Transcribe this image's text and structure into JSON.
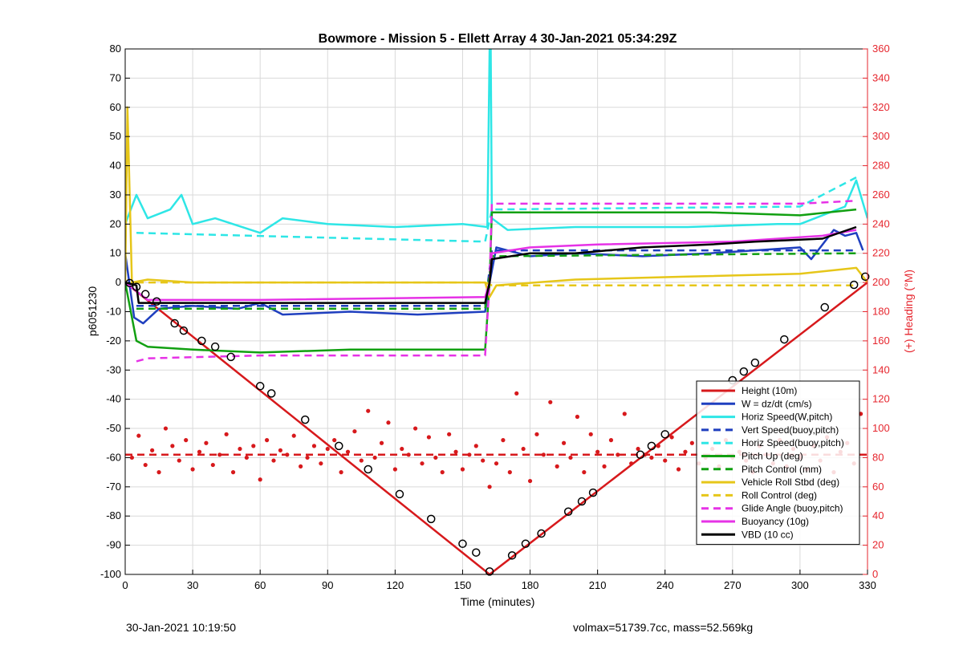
{
  "chart_data": {
    "type": "line",
    "title": "Bowmore - Mission 5 - Ellett Array 4 30-Jan-2021 05:34:29Z",
    "xlabel": "Time (minutes)",
    "ylabel": "p6051230",
    "y2label": "(+) Heading (°M)",
    "xlim": [
      0,
      330
    ],
    "ylim": [
      -100,
      80
    ],
    "y2lim": [
      0,
      360
    ],
    "xticks": [
      0,
      30,
      60,
      90,
      120,
      150,
      180,
      210,
      240,
      270,
      300,
      330
    ],
    "yticks": [
      -100,
      -90,
      -80,
      -70,
      -60,
      -50,
      -40,
      -30,
      -20,
      -10,
      0,
      10,
      20,
      30,
      40,
      50,
      60,
      70,
      80
    ],
    "y2ticks": [
      0,
      20,
      40,
      60,
      80,
      100,
      120,
      140,
      160,
      180,
      200,
      220,
      240,
      260,
      280,
      300,
      320,
      340,
      360
    ],
    "grid": true,
    "legend_position": "bottom-right",
    "colors": {
      "red": "#d7191c",
      "blue": "#1f3fbf",
      "cyan": "#2ee6e6",
      "green": "#12a012",
      "gold": "#e6c619",
      "magenta": "#e632e6",
      "black": "#000000",
      "right_axis": "#e6262e"
    },
    "series": [
      {
        "name": "Height (10m)",
        "color": "#d7191c",
        "style": "solid",
        "axis": "left",
        "x": [
          0,
          162,
          330
        ],
        "y": [
          0,
          -100,
          0
        ]
      },
      {
        "name": "W = dz/dt (cm/s)",
        "color": "#1f3fbf",
        "style": "solid",
        "axis": "left",
        "x": [
          0,
          4,
          8,
          15,
          30,
          50,
          60,
          70,
          100,
          130,
          160,
          162,
          165,
          180,
          200,
          230,
          260,
          280,
          300,
          305,
          315,
          320,
          325,
          328
        ],
        "y": [
          10,
          -12,
          -14,
          -9,
          -8,
          -9,
          -7,
          -11,
          -10,
          -11,
          -10,
          0,
          12,
          9,
          10,
          9,
          10,
          11,
          12,
          8,
          18,
          16,
          17,
          11
        ]
      },
      {
        "name": "Horiz Speed(W,pitch)",
        "color": "#2ee6e6",
        "style": "solid",
        "axis": "left",
        "x": [
          0,
          5,
          10,
          20,
          25,
          30,
          40,
          60,
          70,
          90,
          120,
          150,
          161,
          162,
          162.5,
          163,
          170,
          200,
          250,
          290,
          300,
          320,
          325,
          330
        ],
        "y": [
          20,
          30,
          22,
          25,
          30,
          20,
          22,
          17,
          22,
          20,
          19,
          20,
          19,
          80,
          80,
          22,
          18,
          19,
          19,
          20,
          20,
          26,
          35,
          22
        ]
      },
      {
        "name": "Vert Speed(buoy,pitch)",
        "color": "#1f3fbf",
        "style": "dashed",
        "axis": "left",
        "x": [
          5,
          160,
          163,
          325
        ],
        "y": [
          -8,
          -8,
          11,
          11
        ]
      },
      {
        "name": "Horiz Speed(buoy,pitch)",
        "color": "#2ee6e6",
        "style": "dashed",
        "axis": "left",
        "x": [
          5,
          160,
          163,
          300,
          315,
          325
        ],
        "y": [
          17,
          14,
          25,
          26,
          32,
          36
        ]
      },
      {
        "name": "Pitch Up (deg)",
        "color": "#12a012",
        "style": "solid",
        "axis": "left",
        "x": [
          0,
          5,
          10,
          30,
          60,
          100,
          160,
          162,
          163,
          200,
          260,
          300,
          325
        ],
        "y": [
          0,
          -20,
          -22,
          -23,
          -24,
          -23,
          -23,
          0,
          24,
          24,
          24,
          23,
          25
        ]
      },
      {
        "name": "Pitch Control (mm)",
        "color": "#12a012",
        "style": "dashed",
        "axis": "left",
        "x": [
          5,
          160,
          163,
          325
        ],
        "y": [
          -9,
          -9,
          9,
          10
        ]
      },
      {
        "name": "Vehicle Roll Stbd (deg)",
        "color": "#e6c619",
        "style": "solid",
        "axis": "left",
        "x": [
          0,
          1,
          3,
          10,
          30,
          60,
          120,
          160,
          162,
          165,
          200,
          250,
          300,
          325,
          330
        ],
        "y": [
          0,
          60,
          0,
          1,
          0,
          0,
          0,
          0,
          -5,
          -1,
          1,
          2,
          3,
          5,
          0
        ]
      },
      {
        "name": "Roll Control (deg)",
        "color": "#e6c619",
        "style": "dashed",
        "axis": "left",
        "x": [
          5,
          160,
          163,
          325
        ],
        "y": [
          0,
          0,
          -1,
          -1
        ]
      },
      {
        "name": "Glide Angle (buoy,pitch)",
        "color": "#e632e6",
        "style": "dashed",
        "axis": "left",
        "x": [
          5,
          10,
          60,
          160,
          162,
          163,
          200,
          300,
          325
        ],
        "y": [
          -27,
          -26,
          -25,
          -25,
          0,
          27,
          27,
          27,
          28
        ]
      },
      {
        "name": "Buoyancy (10g)",
        "color": "#e632e6",
        "style": "solid",
        "axis": "left",
        "x": [
          0,
          10,
          60,
          160,
          162,
          163,
          180,
          210,
          270,
          310,
          325
        ],
        "y": [
          0,
          -6,
          -6,
          -5,
          0,
          10,
          12,
          13,
          14,
          16,
          18
        ]
      },
      {
        "name": "VBD (10 cc)",
        "color": "#000000",
        "style": "solid",
        "axis": "left",
        "x": [
          0,
          5,
          6,
          160,
          162,
          163,
          180,
          200,
          230,
          260,
          280,
          310,
          325
        ],
        "y": [
          0,
          -1,
          -7,
          -7,
          0,
          8,
          10,
          10,
          12,
          13,
          14,
          15,
          19
        ]
      },
      {
        "name": "",
        "color": "#d7191c",
        "style": "dashed",
        "axis": "right",
        "x": [
          0,
          330
        ],
        "y": [
          82,
          82
        ]
      }
    ],
    "heading_scatter": {
      "axis": "right",
      "x": [
        3,
        6,
        9,
        12,
        15,
        18,
        21,
        24,
        27,
        30,
        33,
        36,
        39,
        42,
        45,
        48,
        51,
        54,
        57,
        60,
        63,
        66,
        69,
        72,
        75,
        78,
        81,
        84,
        87,
        90,
        93,
        96,
        99,
        102,
        105,
        108,
        111,
        114,
        117,
        120,
        123,
        126,
        129,
        132,
        135,
        138,
        141,
        144,
        147,
        150,
        153,
        156,
        159,
        162,
        165,
        168,
        171,
        174,
        177,
        180,
        183,
        186,
        189,
        192,
        195,
        198,
        201,
        204,
        207,
        210,
        213,
        216,
        219,
        222,
        225,
        228,
        231,
        234,
        237,
        240,
        243,
        246,
        249,
        252,
        255,
        258,
        261,
        264,
        267,
        270,
        273,
        276,
        279,
        282,
        285,
        288,
        291,
        294,
        297,
        300,
        303,
        306,
        309,
        312,
        315,
        318,
        321,
        324,
        327
      ],
      "y": [
        80,
        95,
        75,
        85,
        70,
        100,
        88,
        78,
        92,
        72,
        84,
        90,
        75,
        82,
        96,
        70,
        86,
        80,
        88,
        65,
        92,
        78,
        85,
        82,
        95,
        74,
        80,
        88,
        76,
        86,
        92,
        70,
        84,
        98,
        78,
        112,
        80,
        90,
        104,
        72,
        86,
        82,
        100,
        76,
        94,
        80,
        70,
        96,
        84,
        72,
        82,
        88,
        78,
        60,
        76,
        92,
        70,
        124,
        86,
        64,
        96,
        82,
        118,
        74,
        90,
        80,
        108,
        70,
        96,
        84,
        74,
        92,
        82,
        110,
        76,
        86,
        82,
        80,
        88,
        78,
        94,
        72,
        84,
        90,
        76,
        80,
        86,
        74,
        92,
        80,
        84,
        78,
        70,
        88,
        82,
        76,
        92,
        74,
        86,
        80,
        72,
        88,
        78,
        94,
        70,
        84,
        90,
        76,
        110
      ]
    },
    "depth_markers": {
      "axis": "left",
      "x": [
        2,
        5,
        9,
        14,
        22,
        26,
        34,
        40,
        47,
        60,
        65,
        80,
        95,
        108,
        122,
        136,
        150,
        156,
        162,
        172,
        178,
        185,
        197,
        203,
        208,
        229,
        234,
        240,
        270,
        275,
        280,
        293,
        311,
        324,
        329
      ],
      "y": [
        -0.2,
        -1.5,
        -4,
        -6.5,
        -14,
        -16.5,
        -20,
        -22,
        -25.5,
        -35.5,
        -38,
        -47,
        -56,
        -64,
        -72.5,
        -81,
        -89.5,
        -92.5,
        -99,
        -93.5,
        -89.5,
        -86,
        -78.5,
        -75,
        -72,
        -59,
        -56,
        -52,
        -33.5,
        -30.5,
        -27.5,
        -19.5,
        -8.5,
        -0.8,
        2
      ]
    }
  },
  "footer": {
    "date": "30-Jan-2021 10:19:50",
    "info": "volmax=51739.7cc, mass=52.569kg"
  }
}
